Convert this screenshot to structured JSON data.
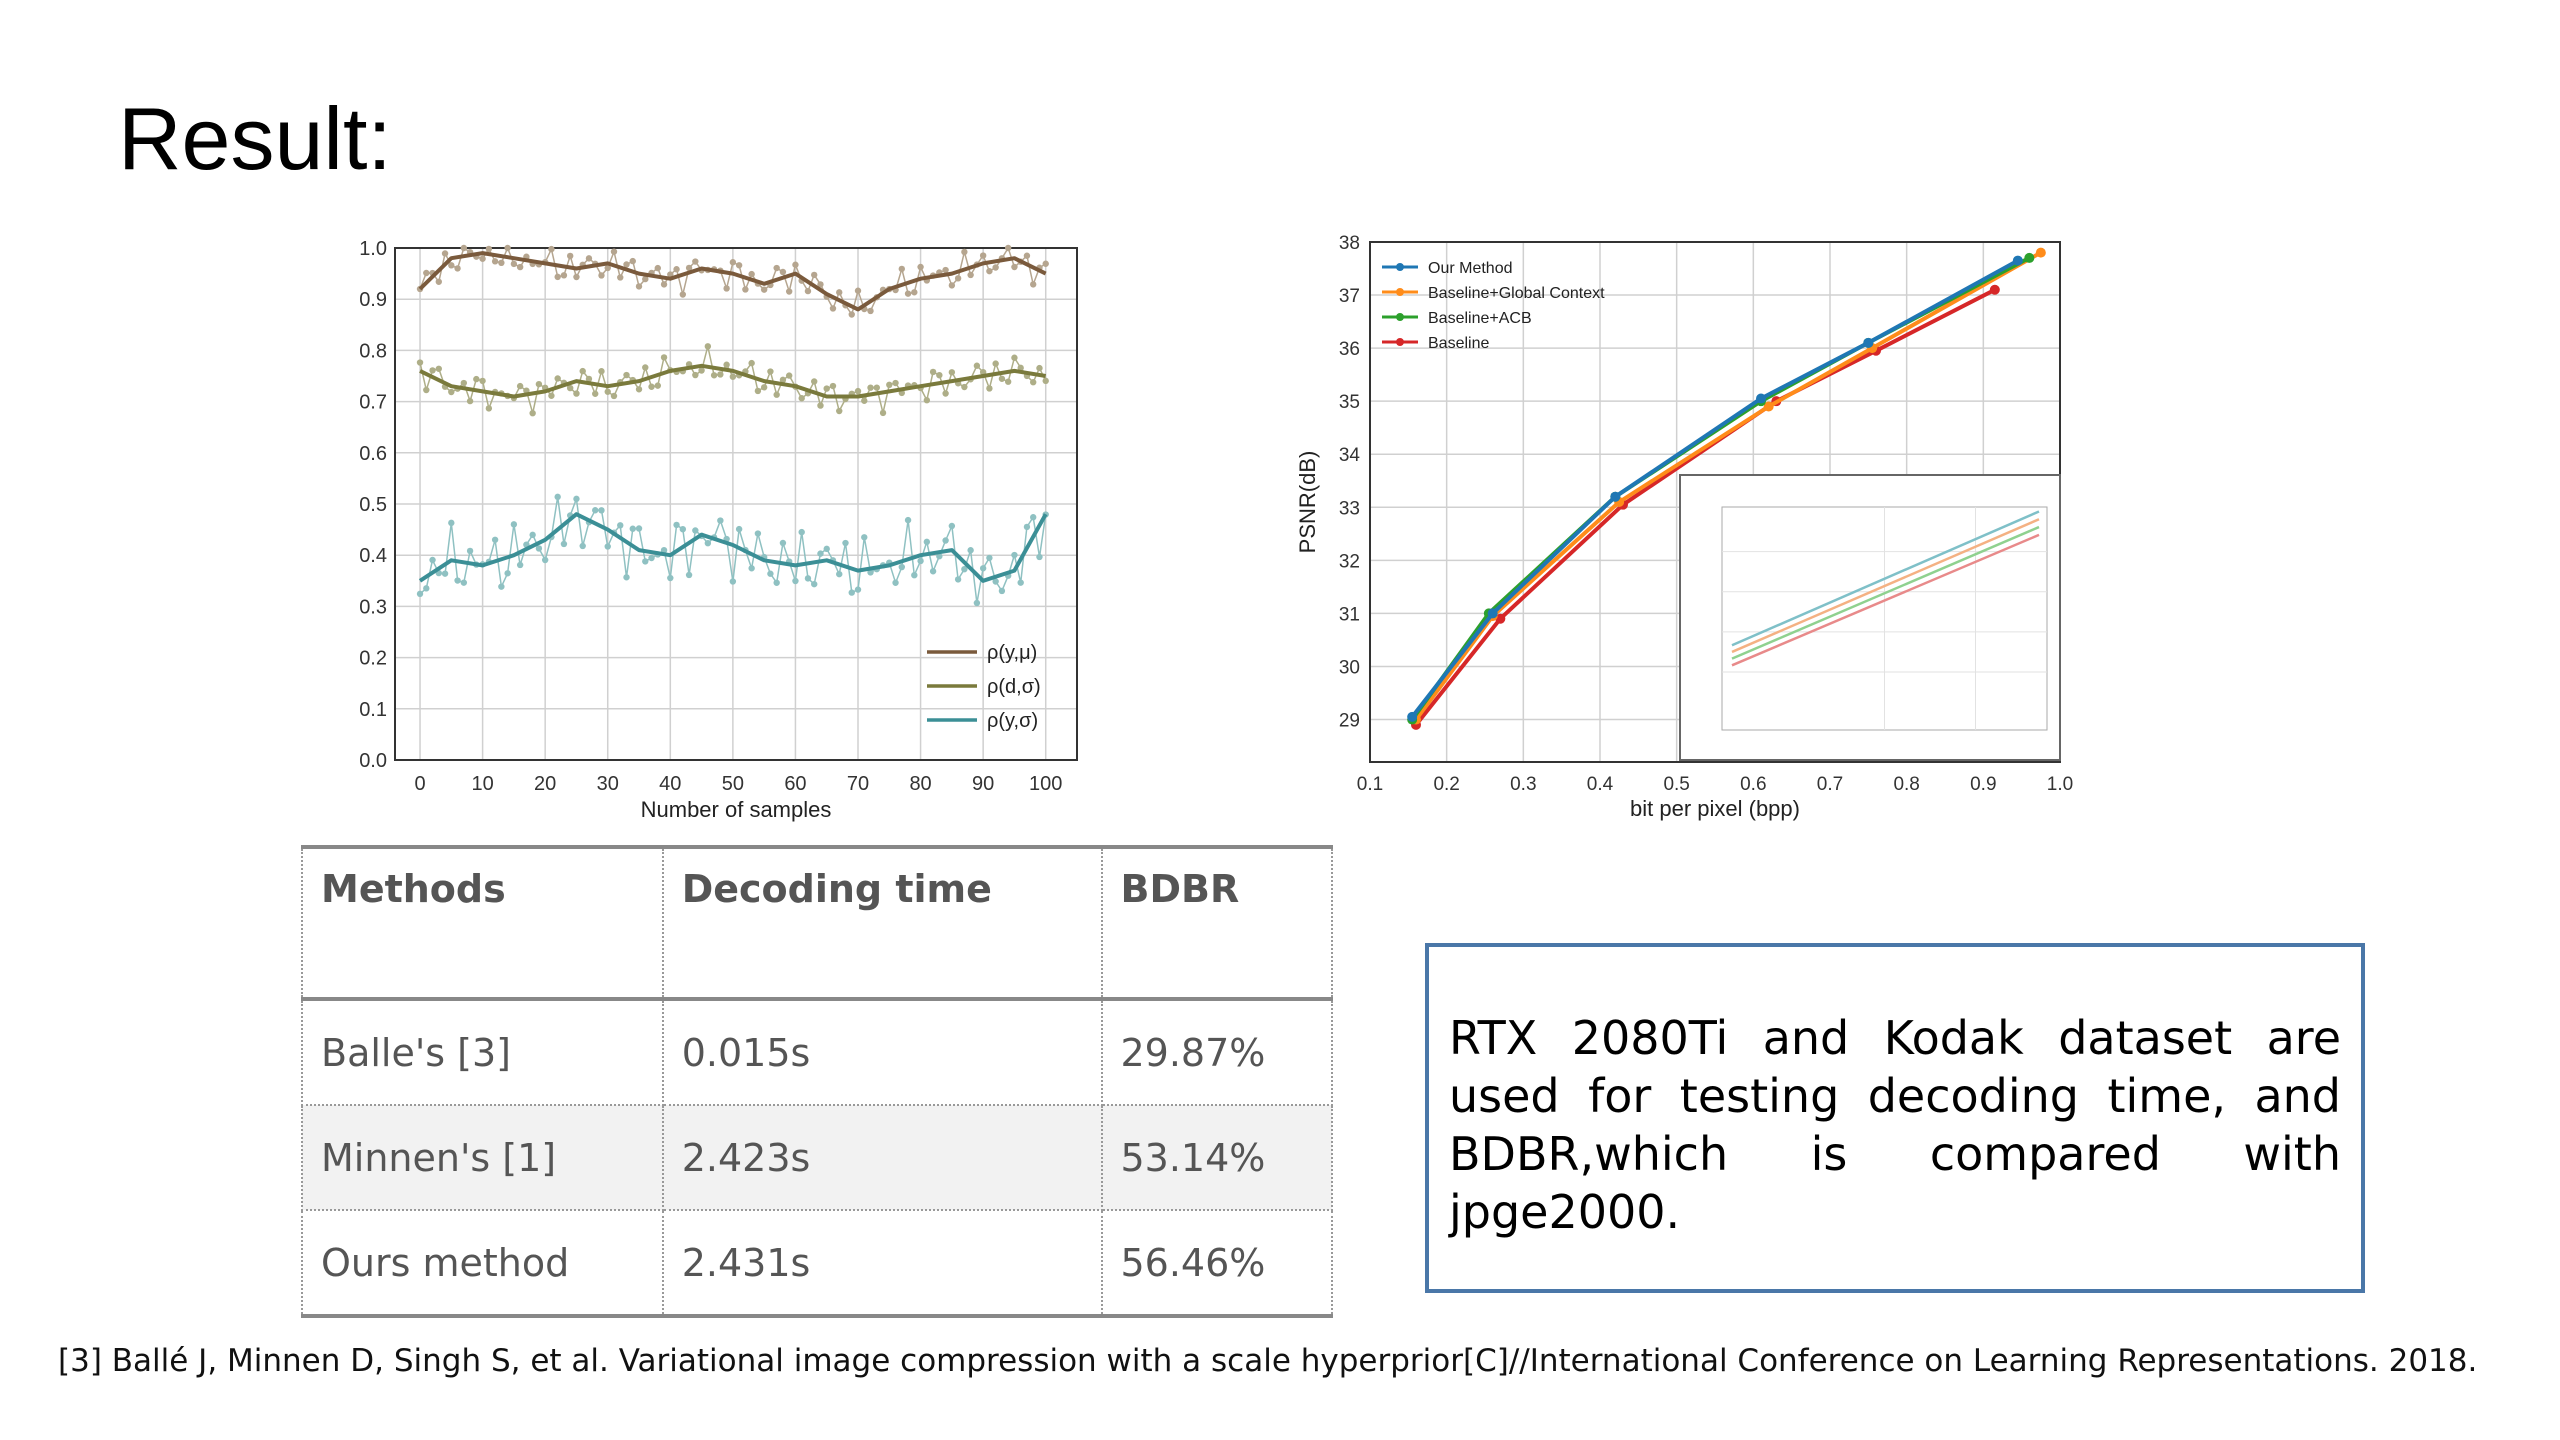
{
  "title": "Result:",
  "chart_data": [
    {
      "type": "line",
      "xlabel": "Number of samples",
      "xlim": [
        -4,
        105
      ],
      "ylim": [
        0.0,
        1.0
      ],
      "xticks": [
        "0",
        "10",
        "20",
        "30",
        "40",
        "50",
        "60",
        "70",
        "80",
        "90",
        "100"
      ],
      "yticks": [
        "0.0",
        "0.1",
        "0.2",
        "0.3",
        "0.4",
        "0.5",
        "0.6",
        "0.7",
        "0.8",
        "0.9",
        "1.0"
      ],
      "grid": true,
      "legend_position": "bottom-right",
      "series": [
        {
          "name": "ρ(y,μ)",
          "color": "#7a5a3c",
          "smooth_x": [
            0,
            5,
            10,
            15,
            20,
            25,
            30,
            35,
            40,
            45,
            50,
            55,
            60,
            65,
            70,
            75,
            80,
            85,
            90,
            95,
            100
          ],
          "smooth_y": [
            0.92,
            0.98,
            0.99,
            0.98,
            0.97,
            0.96,
            0.97,
            0.95,
            0.94,
            0.96,
            0.95,
            0.93,
            0.95,
            0.91,
            0.88,
            0.92,
            0.94,
            0.95,
            0.97,
            0.98,
            0.95
          ]
        },
        {
          "name": "ρ(d,σ)",
          "color": "#7a7a3c",
          "smooth_x": [
            0,
            5,
            10,
            15,
            20,
            25,
            30,
            35,
            40,
            45,
            50,
            55,
            60,
            65,
            70,
            75,
            80,
            85,
            90,
            95,
            100
          ],
          "smooth_y": [
            0.76,
            0.73,
            0.72,
            0.71,
            0.72,
            0.74,
            0.73,
            0.74,
            0.76,
            0.77,
            0.76,
            0.74,
            0.73,
            0.71,
            0.71,
            0.72,
            0.73,
            0.74,
            0.75,
            0.76,
            0.75
          ]
        },
        {
          "name": "ρ(y,σ)",
          "color": "#3b8f96",
          "smooth_x": [
            0,
            5,
            10,
            15,
            20,
            25,
            30,
            35,
            40,
            45,
            50,
            55,
            60,
            65,
            70,
            75,
            80,
            85,
            90,
            95,
            100
          ],
          "smooth_y": [
            0.35,
            0.39,
            0.38,
            0.4,
            0.43,
            0.48,
            0.45,
            0.41,
            0.4,
            0.44,
            0.42,
            0.39,
            0.38,
            0.39,
            0.37,
            0.38,
            0.4,
            0.41,
            0.35,
            0.37,
            0.48
          ]
        }
      ]
    },
    {
      "type": "line",
      "xlabel": "bit per pixel (bpp)",
      "ylabel": "PSNR(dB)",
      "xlim": [
        0.1,
        1.0
      ],
      "ylim": [
        28.2,
        38
      ],
      "xticks": [
        "0.1",
        "0.2",
        "0.3",
        "0.4",
        "0.5",
        "0.6",
        "0.7",
        "0.8",
        "0.9",
        "1.0"
      ],
      "yticks": [
        "29",
        "30",
        "31",
        "32",
        "33",
        "34",
        "35",
        "36",
        "37",
        "38"
      ],
      "grid": true,
      "legend_position": "top-left",
      "series": [
        {
          "name": "Our Method",
          "color": "#1f77b4",
          "x": [
            0.155,
            0.26,
            0.42,
            0.61,
            0.75,
            0.945
          ],
          "y": [
            29.05,
            31.0,
            33.2,
            35.05,
            36.1,
            37.65
          ]
        },
        {
          "name": "Baseline+Global Context",
          "color": "#ff8c1a",
          "x": [
            0.16,
            0.26,
            0.425,
            0.62,
            0.755,
            0.975
          ],
          "y": [
            29.0,
            30.95,
            33.1,
            34.9,
            36.0,
            37.8
          ]
        },
        {
          "name": "Baseline+ACB",
          "color": "#2ca02c",
          "x": [
            0.155,
            0.255,
            0.42,
            0.61,
            0.75,
            0.96
          ],
          "y": [
            29.0,
            31.0,
            33.2,
            35.0,
            36.1,
            37.7
          ]
        },
        {
          "name": "Baseline",
          "color": "#d62728",
          "x": [
            0.16,
            0.27,
            0.43,
            0.63,
            0.76,
            0.915
          ],
          "y": [
            28.9,
            30.9,
            33.05,
            35.0,
            35.95,
            37.1
          ]
        }
      ]
    }
  ],
  "table": {
    "headers": [
      "Methods",
      "Decoding time",
      "BDBR"
    ],
    "rows": [
      [
        "Balle's [3]",
        "0.015s",
        "29.87%"
      ],
      [
        "Minnen's [1]",
        "2.423s",
        "53.14%"
      ],
      [
        "Ours method",
        "2.431s",
        "56.46%"
      ]
    ]
  },
  "note": "RTX 2080Ti and Kodak dataset are used for testing decoding time, and BDBR,which is compared with jpge2000.",
  "reference": "[3] Ballé J, Minnen D, Singh S, et al. Variational image compression with a scale hyperprior[C]//International Conference on Learning Representations. 2018."
}
